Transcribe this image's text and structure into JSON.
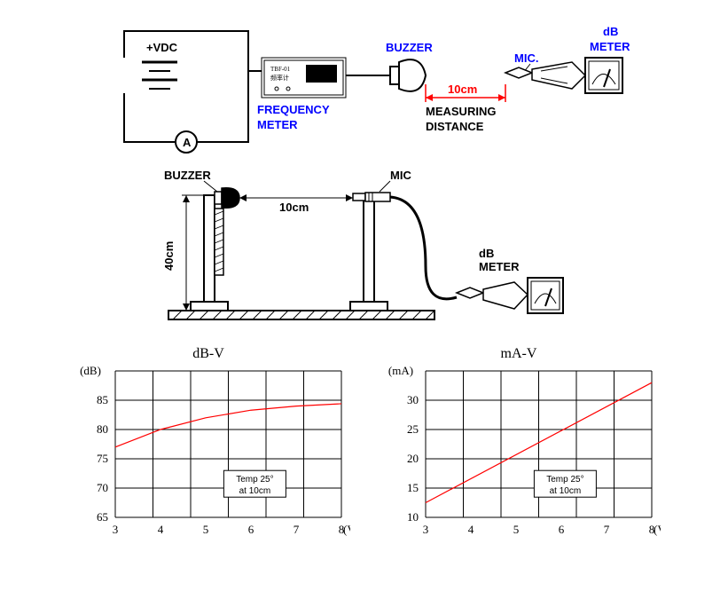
{
  "diagram1": {
    "vdc_label": "+VDC",
    "freq_meter_label": "FREQUENCY\nMETER",
    "buzzer_label": "BUZZER",
    "mic_label": "MIC.",
    "db_meter_label": "dB\nMETER",
    "distance_value": "10cm",
    "distance_label": "MEASURING\nDISTANCE",
    "ammeter_label": "A",
    "colors": {
      "line": "#000000",
      "blue_text": "#0000ff",
      "red_text": "#ff0000",
      "black_text": "#000000"
    }
  },
  "diagram2": {
    "buzzer_label": "BUZZER",
    "mic_label": "MIC",
    "horiz_dim": "10cm",
    "vert_dim": "40cm",
    "db_meter_label": "dB\nMETER"
  },
  "chart_dbv": {
    "type": "line",
    "title": "dB-V",
    "ylabel": "(dB)",
    "xlabel": "(VDC)",
    "y_ticks": [
      65,
      70,
      75,
      80,
      85
    ],
    "x_ticks": [
      3,
      4,
      5,
      6,
      7,
      8
    ],
    "xlim": [
      3,
      8
    ],
    "ylim": [
      65,
      90
    ],
    "curve": [
      [
        3,
        77
      ],
      [
        4,
        80
      ],
      [
        5,
        82
      ],
      [
        6,
        83.3
      ],
      [
        7,
        84
      ],
      [
        8,
        84.4
      ]
    ],
    "curve_color": "#ff0000",
    "grid_color": "#000000",
    "note": "Temp 25°\nat 10cm",
    "note_fontsize": 10
  },
  "chart_mav": {
    "type": "line",
    "title": "mA-V",
    "ylabel": "(mA)",
    "xlabel": "(VDC)",
    "y_ticks": [
      10,
      15,
      20,
      25,
      30
    ],
    "x_ticks": [
      3,
      4,
      5,
      6,
      7,
      8
    ],
    "xlim": [
      3,
      8
    ],
    "ylim": [
      10,
      35
    ],
    "curve": [
      [
        3,
        12.5
      ],
      [
        8,
        33
      ]
    ],
    "curve_color": "#ff0000",
    "grid_color": "#000000",
    "note": "Temp 25°\nat 10cm",
    "note_fontsize": 10
  }
}
